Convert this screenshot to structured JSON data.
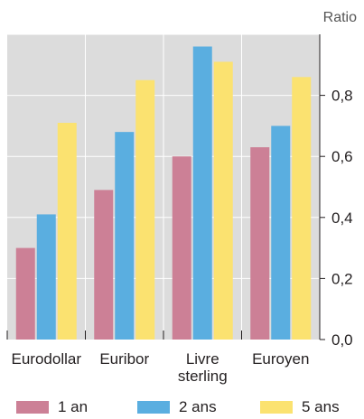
{
  "chart_data": {
    "type": "bar",
    "unit_label": "Ratio",
    "categories": [
      [
        "Eurodollar"
      ],
      [
        "Euribor"
      ],
      [
        "Livre",
        "sterling"
      ],
      [
        "Euroyen"
      ]
    ],
    "series": [
      {
        "name": "1 an",
        "color": "#cc8096",
        "values": [
          0.3,
          0.49,
          0.6,
          0.63
        ]
      },
      {
        "name": "2 ans",
        "color": "#5aaee0",
        "values": [
          0.41,
          0.68,
          0.96,
          0.7
        ]
      },
      {
        "name": "5 ans",
        "color": "#fbe270",
        "values": [
          0.71,
          0.85,
          0.91,
          0.86
        ]
      }
    ],
    "ylim": [
      0,
      1.0
    ],
    "yticks": [
      0.0,
      0.2,
      0.4,
      0.6,
      0.8
    ],
    "ytick_labels": [
      "0,0",
      "0,2",
      "0,4",
      "0,6",
      "0,8"
    ],
    "grid": true,
    "background_color": "#dcdcdc",
    "axis": "right",
    "legend_position": "bottom"
  }
}
